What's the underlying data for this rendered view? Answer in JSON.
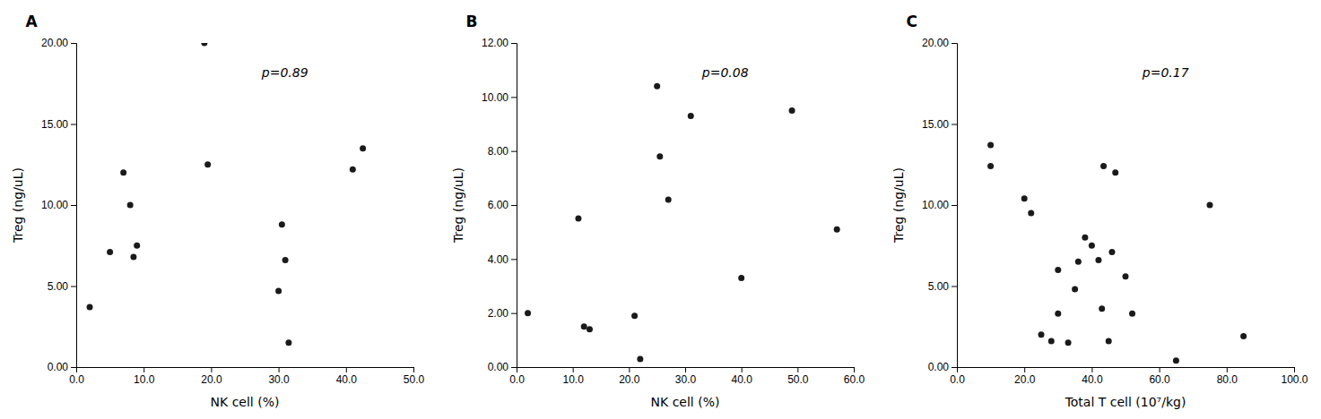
{
  "chart_data": [
    {
      "type": "scatter",
      "title": "A",
      "x": [
        2.0,
        5.0,
        7.0,
        8.0,
        8.5,
        9.0,
        19.0,
        19.5,
        30.0,
        30.5,
        31.0,
        31.5,
        41.0,
        42.5
      ],
      "values": [
        3.7,
        7.1,
        12.0,
        10.0,
        6.8,
        7.5,
        20.0,
        12.5,
        4.7,
        8.8,
        6.6,
        1.5,
        12.2,
        13.5
      ],
      "color": "#1a1a1a",
      "xlabel": "NK cell (%)",
      "ylabel": "Treg (ng/uL)",
      "xlim": [
        0,
        50
      ],
      "ylim": [
        0,
        20
      ],
      "xticks": [
        {
          "value": 0,
          "label": "0.0"
        },
        {
          "value": 10,
          "label": "10.0"
        },
        {
          "value": 20,
          "label": "20.0"
        },
        {
          "value": 30,
          "label": "30.0"
        },
        {
          "value": 40,
          "label": "40.0"
        },
        {
          "value": 50,
          "label": "50.0"
        }
      ],
      "yticks": [
        {
          "value": 0,
          "label": "0.00"
        },
        {
          "value": 5,
          "label": "5.00"
        },
        {
          "value": 10,
          "label": "10.00"
        },
        {
          "value": 15,
          "label": "15.00"
        },
        {
          "value": 20,
          "label": "20.00"
        }
      ],
      "annotations": [
        "p=0.89"
      ],
      "grid": false
    },
    {
      "type": "scatter",
      "title": "B",
      "x": [
        2.0,
        11.0,
        12.0,
        13.0,
        21.0,
        22.0,
        25.0,
        25.5,
        27.0,
        31.0,
        40.0,
        49.0,
        57.0
      ],
      "values": [
        2.0,
        5.5,
        1.5,
        1.4,
        1.9,
        0.3,
        10.4,
        7.8,
        6.2,
        9.3,
        3.3,
        9.5,
        5.1
      ],
      "color": "#1a1a1a",
      "xlabel": "NK cell (%)",
      "ylabel": "Treg (ng/uL)",
      "xlim": [
        0,
        60
      ],
      "ylim": [
        0,
        12
      ],
      "xticks": [
        {
          "value": 0,
          "label": "0.0"
        },
        {
          "value": 10,
          "label": "10.0"
        },
        {
          "value": 20,
          "label": "20.0"
        },
        {
          "value": 30,
          "label": "30.0"
        },
        {
          "value": 40,
          "label": "40.0"
        },
        {
          "value": 50,
          "label": "50.0"
        },
        {
          "value": 60,
          "label": "60.0"
        }
      ],
      "yticks": [
        {
          "value": 0,
          "label": "0.00"
        },
        {
          "value": 2,
          "label": "2.00"
        },
        {
          "value": 4,
          "label": "4.00"
        },
        {
          "value": 6,
          "label": "6.00"
        },
        {
          "value": 8,
          "label": "8.00"
        },
        {
          "value": 10,
          "label": "10.00"
        },
        {
          "value": 12,
          "label": "12.00"
        }
      ],
      "annotations": [
        "p=0.08"
      ],
      "grid": false
    },
    {
      "type": "scatter",
      "title": "C",
      "x": [
        10.0,
        10.0,
        20.0,
        22.0,
        25.0,
        28.0,
        30.0,
        30.0,
        33.0,
        35.0,
        36.0,
        38.0,
        40.0,
        42.0,
        43.0,
        43.5,
        45.0,
        46.0,
        47.0,
        50.0,
        52.0,
        65.0,
        75.0,
        85.0
      ],
      "values": [
        13.7,
        12.4,
        10.4,
        9.5,
        2.0,
        1.6,
        6.0,
        3.3,
        1.5,
        4.8,
        6.5,
        8.0,
        7.5,
        6.6,
        3.6,
        12.4,
        1.6,
        7.1,
        12.0,
        5.6,
        3.3,
        0.4,
        10.0,
        1.9
      ],
      "color": "#1a1a1a",
      "xlabel": "Total T cell (10⁷/kg)",
      "ylabel": "Treg (ng/uL)",
      "xlim": [
        0,
        100
      ],
      "ylim": [
        0,
        20
      ],
      "xticks": [
        {
          "value": 0,
          "label": "0.0"
        },
        {
          "value": 20,
          "label": "20.0"
        },
        {
          "value": 40,
          "label": "40.0"
        },
        {
          "value": 60,
          "label": "60.0"
        },
        {
          "value": 80,
          "label": "80.0"
        },
        {
          "value": 100,
          "label": "100.0"
        }
      ],
      "yticks": [
        {
          "value": 0,
          "label": "0.00"
        },
        {
          "value": 5,
          "label": "5.00"
        },
        {
          "value": 10,
          "label": "10.00"
        },
        {
          "value": 15,
          "label": "15.00"
        },
        {
          "value": 20,
          "label": "20.00"
        }
      ],
      "annotations": [
        "p=0.17"
      ],
      "grid": false
    }
  ]
}
